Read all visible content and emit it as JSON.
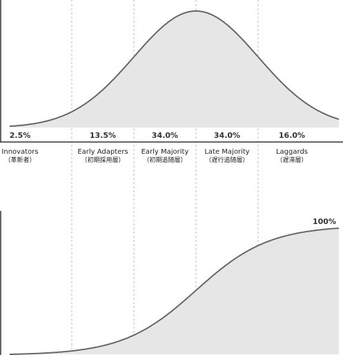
{
  "chart_data": [
    {
      "type": "area",
      "description_labels": [],
      "segments": [
        {
          "name": "Innovators",
          "name_ja": "（革新者）",
          "share_label": "2.5%",
          "share": 2.5
        },
        {
          "name": "Early Adapters",
          "name_ja": "（初期採用層）",
          "share_label": "13.5%",
          "share": 13.5
        },
        {
          "name": "Early Majority",
          "name_ja": "（初期追随層）",
          "share_label": "34.0%",
          "share": 34.0
        },
        {
          "name": "Late Majority",
          "name_ja": "（遅行追随層）",
          "share_label": "34.0%",
          "share": 34.0
        },
        {
          "name": "Laggards",
          "name_ja": "（遅滞層）",
          "share_label": "16.0%",
          "share": 16.0
        }
      ],
      "curve": "normal-distribution",
      "x_range_sd": [
        -3.0,
        2.3
      ],
      "boundaries_sd": [
        -2,
        -1,
        0,
        1
      ],
      "grid": false
    },
    {
      "type": "area",
      "curve": "cumulative-distribution",
      "end_label": "100%",
      "end_value": 100,
      "x_range_sd": [
        -3.0,
        2.3
      ],
      "boundaries_sd": [
        -2,
        -1,
        0,
        1
      ],
      "grid": false
    }
  ],
  "colors": {
    "curve": "#666666",
    "fill": "#e6e6e6",
    "divider": "#f0a0b8",
    "axis": "#333333",
    "text": "#222222"
  }
}
